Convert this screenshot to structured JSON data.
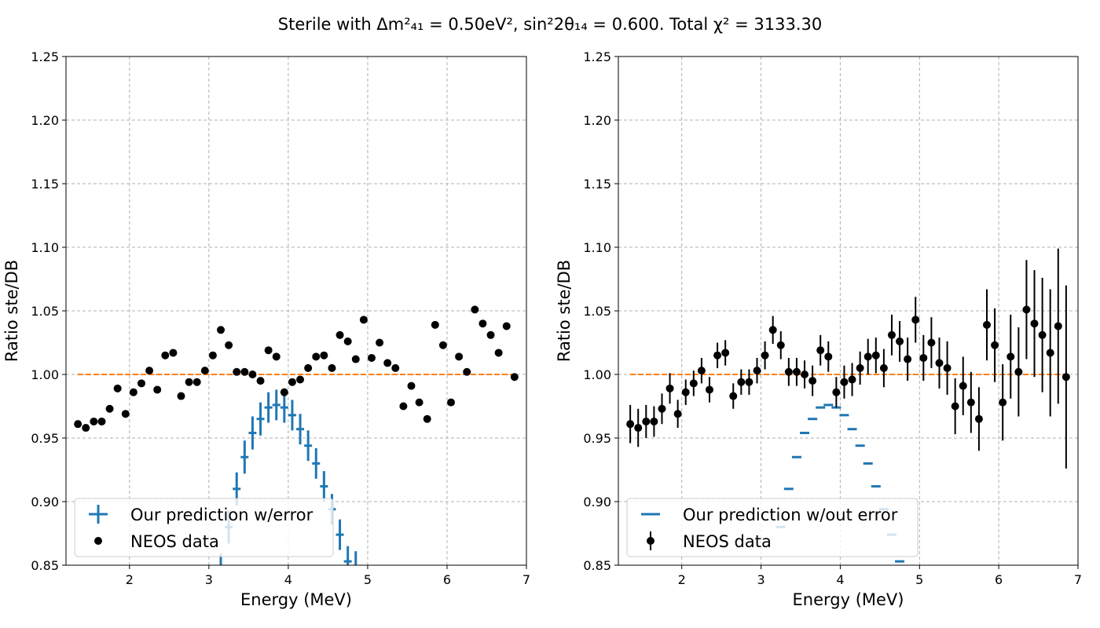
{
  "title": "Sterile with Δm²₄₁ = 0.50eV², sin²2θ₁₄ = 0.600. Total χ² = 3133.30",
  "chart_data": [
    {
      "type": "errorbar",
      "xlabel": "Energy (MeV)",
      "ylabel": "Ratio ste/DB",
      "xlim": [
        1.2,
        7
      ],
      "ylim": [
        0.85,
        1.25
      ],
      "xticks": [
        2,
        3,
        4,
        5,
        6,
        7
      ],
      "yticks": [
        0.85,
        {
          "value": 0.9,
          "label": "0.90"
        },
        0.95,
        {
          "value": 1.0,
          "label": "1.00"
        },
        1.05,
        {
          "value": 1.1,
          "label": "1.10"
        },
        1.15,
        {
          "value": 1.2,
          "label": "1.20"
        },
        1.25
      ],
      "grid": true,
      "legend": "lower left",
      "hline": {
        "value": 1.0,
        "color": "#ff7f0e"
      },
      "series": [
        {
          "name": "Our prediction w/error",
          "color": "#1f77b4",
          "marker": "cross",
          "x": [
            3.15,
            3.25,
            3.35,
            3.45,
            3.55,
            3.65,
            3.75,
            3.85,
            3.95,
            4.05,
            4.15,
            4.25,
            4.35,
            4.45,
            4.55,
            4.65,
            4.75,
            4.85
          ],
          "values": [
            0.846,
            0.88,
            0.91,
            0.935,
            0.954,
            0.965,
            0.974,
            0.976,
            0.974,
            0.968,
            0.957,
            0.944,
            0.93,
            0.912,
            0.894,
            0.874,
            0.853,
            0.849
          ],
          "yerr": [
            0.013,
            0.013,
            0.013,
            0.013,
            0.013,
            0.013,
            0.012,
            0.012,
            0.012,
            0.012,
            0.012,
            0.012,
            0.012,
            0.012,
            0.012,
            0.012,
            0.012,
            0.012
          ]
        },
        {
          "name": "NEOS data",
          "color": "#000000",
          "marker": "circle",
          "x": [
            1.35,
            1.45,
            1.55,
            1.65,
            1.75,
            1.85,
            1.95,
            2.05,
            2.15,
            2.25,
            2.35,
            2.45,
            2.55,
            2.65,
            2.75,
            2.85,
            2.95,
            3.05,
            3.15,
            3.25,
            3.35,
            3.45,
            3.55,
            3.65,
            3.75,
            3.85,
            3.95,
            4.05,
            4.15,
            4.25,
            4.35,
            4.45,
            4.55,
            4.65,
            4.75,
            4.85,
            4.95,
            5.05,
            5.15,
            5.25,
            5.35,
            5.45,
            5.55,
            5.65,
            5.75,
            5.85,
            5.95,
            6.05,
            6.15,
            6.25,
            6.35,
            6.45,
            6.55,
            6.65,
            6.75,
            6.85
          ],
          "values": [
            0.961,
            0.958,
            0.963,
            0.963,
            0.973,
            0.989,
            0.969,
            0.986,
            0.993,
            1.003,
            0.988,
            1.015,
            1.017,
            0.983,
            0.994,
            0.994,
            1.003,
            1.015,
            1.035,
            1.023,
            1.002,
            1.002,
            1.0,
            0.995,
            1.019,
            1.014,
            0.986,
            0.994,
            0.996,
            1.005,
            1.014,
            1.015,
            1.005,
            1.031,
            1.026,
            1.012,
            1.043,
            1.013,
            1.025,
            1.009,
            1.005,
            0.975,
            0.991,
            0.978,
            0.965,
            1.039,
            1.023,
            0.978,
            1.014,
            1.002,
            1.051,
            1.04,
            1.031,
            1.017,
            1.038,
            0.998
          ]
        }
      ]
    },
    {
      "type": "errorbar",
      "xlabel": "Energy (MeV)",
      "ylabel": "Ratio ste/DB",
      "xlim": [
        1.2,
        7
      ],
      "ylim": [
        0.85,
        1.25
      ],
      "xticks": [
        2,
        3,
        4,
        5,
        6,
        7
      ],
      "yticks": [
        0.85,
        {
          "value": 0.9,
          "label": "0.90"
        },
        0.95,
        {
          "value": 1.0,
          "label": "1.00"
        },
        1.05,
        {
          "value": 1.1,
          "label": "1.10"
        },
        1.15,
        {
          "value": 1.2,
          "label": "1.20"
        },
        1.25
      ],
      "grid": true,
      "legend": "lower left",
      "hline": {
        "value": 1.0,
        "color": "#ff7f0e"
      },
      "series": [
        {
          "name": "Our prediction w/out error",
          "color": "#1f77b4",
          "marker": "dash",
          "x": [
            3.15,
            3.25,
            3.35,
            3.45,
            3.55,
            3.65,
            3.75,
            3.85,
            3.95,
            4.05,
            4.15,
            4.25,
            4.35,
            4.45,
            4.55,
            4.65,
            4.75,
            4.85
          ],
          "values": [
            0.846,
            0.88,
            0.91,
            0.935,
            0.954,
            0.965,
            0.974,
            0.976,
            0.974,
            0.968,
            0.957,
            0.944,
            0.93,
            0.912,
            0.894,
            0.874,
            0.853,
            0.849
          ]
        },
        {
          "name": "NEOS data",
          "color": "#000000",
          "marker": "circle",
          "x": [
            1.35,
            1.45,
            1.55,
            1.65,
            1.75,
            1.85,
            1.95,
            2.05,
            2.15,
            2.25,
            2.35,
            2.45,
            2.55,
            2.65,
            2.75,
            2.85,
            2.95,
            3.05,
            3.15,
            3.25,
            3.35,
            3.45,
            3.55,
            3.65,
            3.75,
            3.85,
            3.95,
            4.05,
            4.15,
            4.25,
            4.35,
            4.45,
            4.55,
            4.65,
            4.75,
            4.85,
            4.95,
            5.05,
            5.15,
            5.25,
            5.35,
            5.45,
            5.55,
            5.65,
            5.75,
            5.85,
            5.95,
            6.05,
            6.15,
            6.25,
            6.35,
            6.45,
            6.55,
            6.65,
            6.75,
            6.85
          ],
          "values": [
            0.961,
            0.958,
            0.963,
            0.963,
            0.973,
            0.989,
            0.969,
            0.986,
            0.993,
            1.003,
            0.988,
            1.015,
            1.017,
            0.983,
            0.994,
            0.994,
            1.003,
            1.015,
            1.035,
            1.023,
            1.002,
            1.002,
            1.0,
            0.995,
            1.019,
            1.014,
            0.986,
            0.994,
            0.996,
            1.005,
            1.014,
            1.015,
            1.005,
            1.031,
            1.026,
            1.012,
            1.043,
            1.013,
            1.025,
            1.009,
            1.005,
            0.975,
            0.991,
            0.978,
            0.965,
            1.039,
            1.023,
            0.978,
            1.014,
            1.002,
            1.051,
            1.04,
            1.031,
            1.017,
            1.038,
            0.998
          ],
          "yerr": [
            0.015,
            0.015,
            0.013,
            0.012,
            0.012,
            0.012,
            0.011,
            0.01,
            0.01,
            0.01,
            0.01,
            0.01,
            0.01,
            0.01,
            0.01,
            0.01,
            0.01,
            0.011,
            0.011,
            0.011,
            0.011,
            0.011,
            0.011,
            0.012,
            0.012,
            0.012,
            0.012,
            0.013,
            0.013,
            0.013,
            0.014,
            0.014,
            0.015,
            0.016,
            0.016,
            0.017,
            0.018,
            0.018,
            0.02,
            0.02,
            0.021,
            0.022,
            0.023,
            0.024,
            0.025,
            0.028,
            0.029,
            0.03,
            0.033,
            0.035,
            0.039,
            0.042,
            0.045,
            0.05,
            0.061,
            0.072
          ]
        }
      ]
    }
  ]
}
